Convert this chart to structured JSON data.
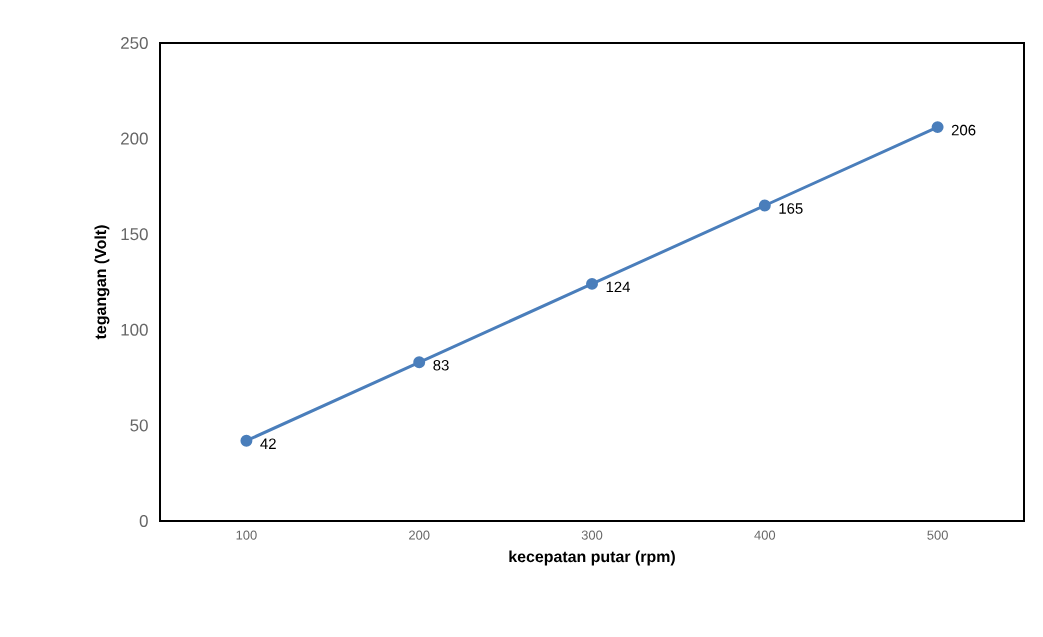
{
  "chart_data": {
    "type": "line",
    "xlabel": "kecepatan putar (rpm)",
    "ylabel": "tegangan (Volt)",
    "categories": [
      "100",
      "200",
      "300",
      "400",
      "500"
    ],
    "values": [
      42,
      83,
      124,
      165,
      206
    ],
    "color": "#4a7ebb",
    "marker": "circle",
    "line_style": "solid",
    "data_labels": true,
    "grid": false,
    "ylim": [
      0,
      250
    ],
    "yticks": [
      0,
      50,
      100,
      150,
      200,
      250
    ]
  }
}
